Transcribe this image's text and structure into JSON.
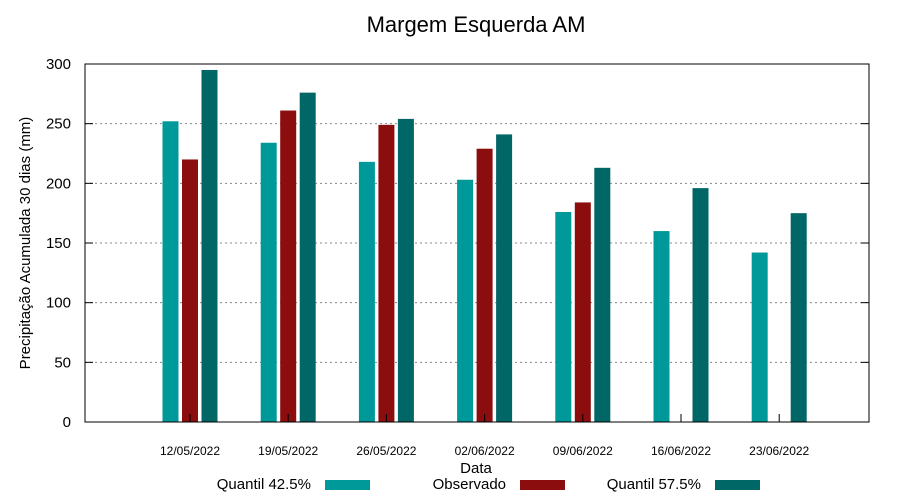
{
  "chart_data": {
    "type": "bar",
    "title": "Margem Esquerda AM",
    "xlabel": "Data",
    "ylabel": "Precipitação Acumulada 30 dias (mm)",
    "ylim": [
      0,
      300
    ],
    "yticks": [
      0,
      50,
      100,
      150,
      200,
      250,
      300
    ],
    "grid": true,
    "legend_position": "bottom",
    "categories": [
      "12/05/2022",
      "19/05/2022",
      "26/05/2022",
      "02/06/2022",
      "09/06/2022",
      "16/06/2022",
      "23/06/2022"
    ],
    "series": [
      {
        "name": "Quantil 42.5%",
        "color": "#009999",
        "values": [
          252,
          234,
          218,
          203,
          176,
          160,
          142
        ]
      },
      {
        "name": "Observado",
        "color": "#8b0d0d",
        "values": [
          220,
          261,
          249,
          229,
          184,
          null,
          null
        ]
      },
      {
        "name": "Quantil 57.5%",
        "color": "#006666",
        "values": [
          295,
          276,
          254,
          241,
          213,
          196,
          175
        ]
      }
    ]
  }
}
